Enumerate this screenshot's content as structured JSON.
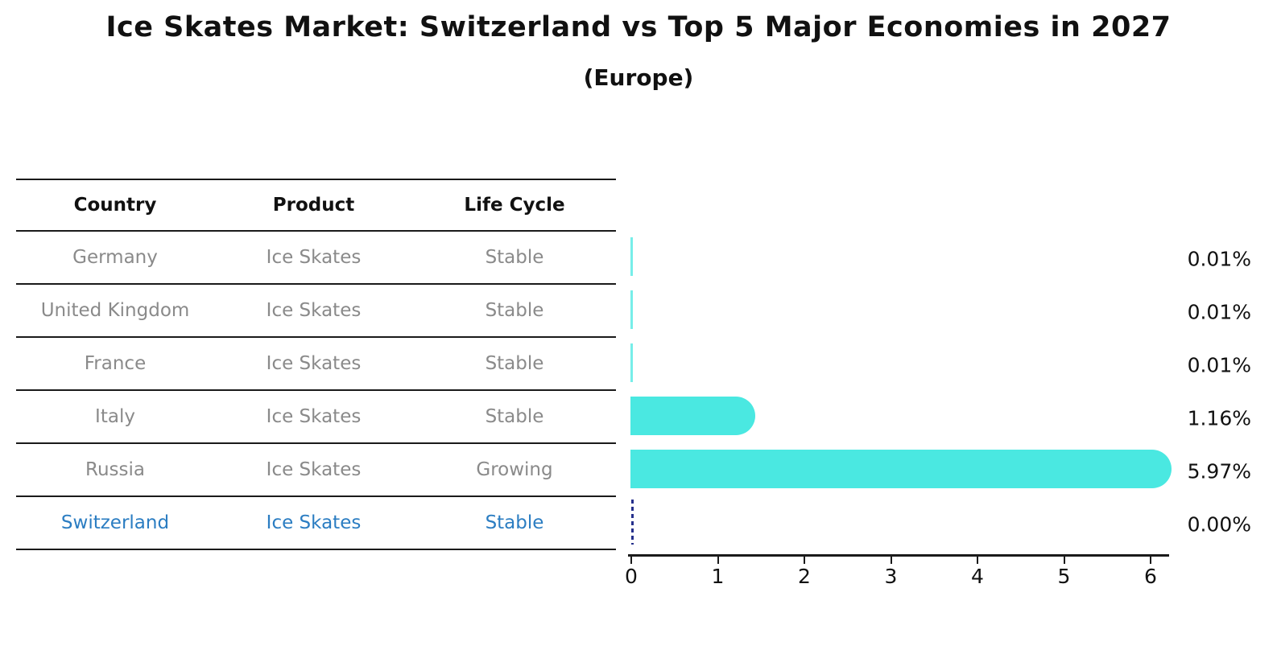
{
  "title": "Ice Skates Market: Switzerland vs Top 5 Major Economies in 2027",
  "subtitle": "(Europe)",
  "table": {
    "headers": [
      "Country",
      "Product",
      "Life Cycle"
    ],
    "rows": [
      {
        "country": "Germany",
        "product": "Ice Skates",
        "life_cycle": "Stable",
        "share_label": "0.01%",
        "share": 0.01,
        "highlight": false
      },
      {
        "country": "United Kingdom",
        "product": "Ice Skates",
        "life_cycle": "Stable",
        "share_label": "0.01%",
        "share": 0.01,
        "highlight": false
      },
      {
        "country": "France",
        "product": "Ice Skates",
        "life_cycle": "Stable",
        "share_label": "0.01%",
        "share": 0.01,
        "highlight": false
      },
      {
        "country": "Italy",
        "product": "Ice Skates",
        "life_cycle": "Stable",
        "share_label": "1.16%",
        "share": 1.16,
        "highlight": false
      },
      {
        "country": "Russia",
        "product": "Ice Skates",
        "life_cycle": "Growing",
        "share_label": "5.97%",
        "share": 5.97,
        "highlight": false
      },
      {
        "country": "Switzerland",
        "product": "Ice Skates",
        "life_cycle": "Stable",
        "share_label": "0.00%",
        "share": 0.0,
        "highlight": true
      }
    ]
  },
  "chart_data": {
    "type": "bar",
    "orientation": "horizontal",
    "title": "Ice Skates Market: Switzerland vs Top 5 Major Economies in 2027",
    "subtitle": "(Europe)",
    "categories": [
      "Germany",
      "United Kingdom",
      "France",
      "Italy",
      "Russia",
      "Switzerland"
    ],
    "values": [
      0.01,
      0.01,
      0.01,
      1.16,
      5.97,
      0.0
    ],
    "value_labels": [
      "0.01%",
      "0.01%",
      "0.01%",
      "1.16%",
      "5.97%",
      "0.00%"
    ],
    "xlabel": "",
    "ylabel": "",
    "xlim": [
      0,
      6.2
    ],
    "xticks": [
      0,
      1,
      2,
      3,
      4,
      5,
      6
    ],
    "grid": false,
    "legend": false,
    "zero_value_marker": "dashed vertical line at x=0 for Switzerland"
  },
  "colors": {
    "bar": "#4ae8e1",
    "highlight_text": "#2b7dc2",
    "row_text": "#8a8a8a",
    "header_text": "#111111",
    "zero_marker": "#26308c",
    "axis": "#1a1a1a",
    "background": "#ffffff"
  }
}
